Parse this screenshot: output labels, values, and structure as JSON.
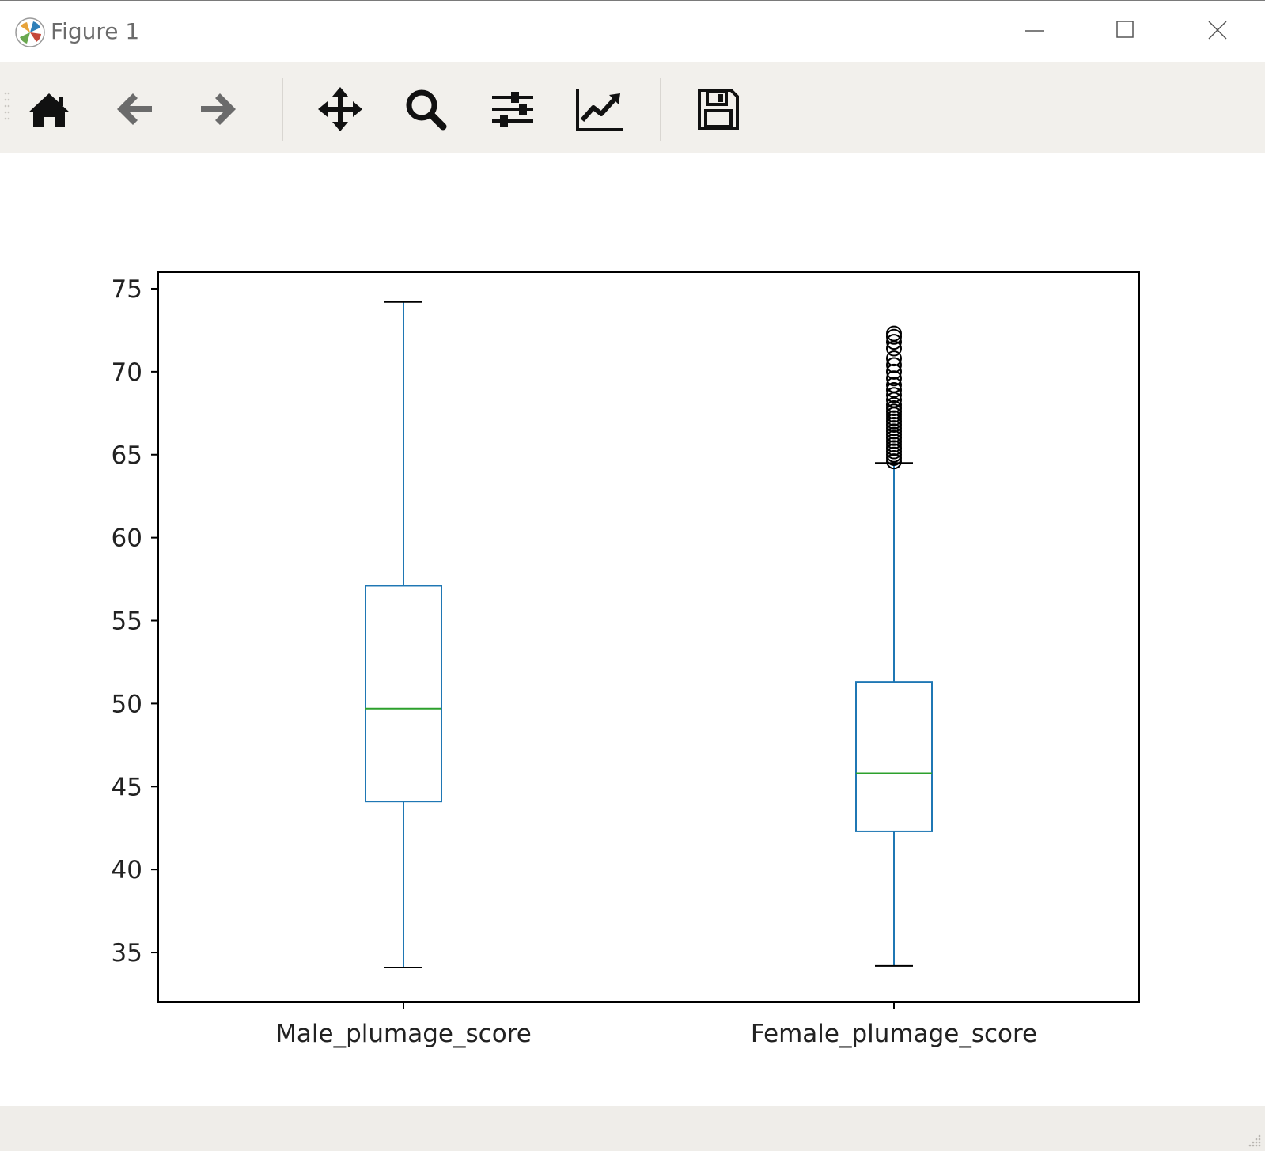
{
  "window": {
    "title": "Figure 1"
  },
  "toolbar": {
    "tools": [
      {
        "name": "home",
        "icon": "home-icon"
      },
      {
        "name": "back",
        "icon": "arrow-left-icon"
      },
      {
        "name": "forward",
        "icon": "arrow-right-icon"
      },
      {
        "name": "pan",
        "icon": "move-icon"
      },
      {
        "name": "zoom",
        "icon": "magnifier-icon"
      },
      {
        "name": "configure-subplots",
        "icon": "sliders-icon"
      },
      {
        "name": "edit-axis",
        "icon": "line-chart-icon"
      },
      {
        "name": "save",
        "icon": "floppy-disk-icon"
      }
    ]
  },
  "colors": {
    "box": "#1f77b4",
    "median": "#2ca02c",
    "flier": "#000000"
  },
  "chart_data": {
    "type": "boxplot",
    "title": "",
    "xlabel": "",
    "ylabel": "",
    "ylim": [
      32,
      76
    ],
    "yticks": [
      35,
      40,
      45,
      50,
      55,
      60,
      65,
      70,
      75
    ],
    "grid": false,
    "categories": [
      "Male_plumage_score",
      "Female_plumage_score"
    ],
    "boxes": [
      {
        "whisker_low": 34.1,
        "q1": 44.1,
        "median": 49.7,
        "q3": 57.1,
        "whisker_high": 74.2,
        "fliers": []
      },
      {
        "whisker_low": 34.2,
        "q1": 42.3,
        "median": 45.8,
        "q3": 51.3,
        "whisker_high": 64.5,
        "fliers": [
          64.6,
          64.8,
          65.0,
          65.2,
          65.4,
          65.6,
          65.8,
          66.0,
          66.2,
          66.4,
          66.6,
          66.8,
          67.0,
          67.2,
          67.4,
          67.6,
          67.8,
          68.0,
          68.3,
          68.6,
          68.9,
          69.2,
          69.6,
          70.0,
          70.4,
          70.8,
          71.4,
          71.8,
          72.1,
          72.3
        ]
      }
    ]
  }
}
